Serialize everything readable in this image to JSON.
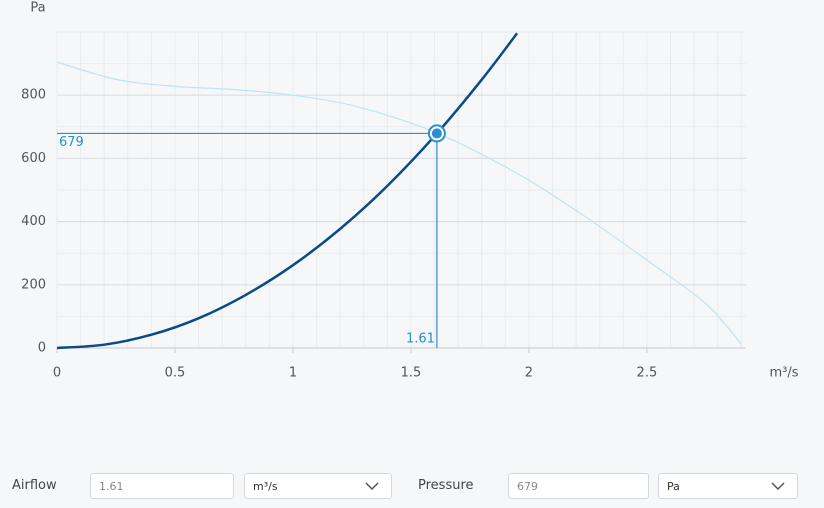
{
  "chart_data": {
    "type": "line",
    "y_label": "Pa",
    "x_label": "m³/s",
    "xlim": [
      0,
      2.92
    ],
    "ylim": [
      0,
      1000
    ],
    "xticks": [
      0,
      0.5,
      1,
      1.5,
      2,
      2.5
    ],
    "yticks": [
      0,
      200,
      400,
      600,
      800
    ],
    "grid": true,
    "series": [
      {
        "color": "#bfe4f3",
        "x": [
          0,
          0.25,
          0.5,
          0.75,
          1,
          1.25,
          1.5,
          1.61,
          1.75,
          2,
          2.25,
          2.5,
          2.75,
          2.9
        ],
        "values": [
          905,
          850,
          828,
          818,
          800,
          768,
          712,
          679,
          632,
          531,
          410,
          278,
          140,
          12
        ]
      },
      {
        "color": "#0b4a85",
        "x": [
          0,
          0.2,
          0.4,
          0.6,
          0.8,
          1.0,
          1.2,
          1.4,
          1.61,
          1.8,
          1.95
        ],
        "values": [
          0,
          10.5,
          42,
          94,
          168,
          262,
          377,
          513,
          679,
          849,
          996
        ]
      }
    ],
    "operating_point": {
      "x": 1.61,
      "y": 679,
      "color": "#2a8fd0"
    }
  },
  "form": {
    "airflow_label": "Airflow",
    "airflow_value": "1.61",
    "airflow_unit": "m³/s",
    "pressure_label": "Pressure",
    "pressure_value": "679",
    "pressure_unit": "Pa"
  }
}
